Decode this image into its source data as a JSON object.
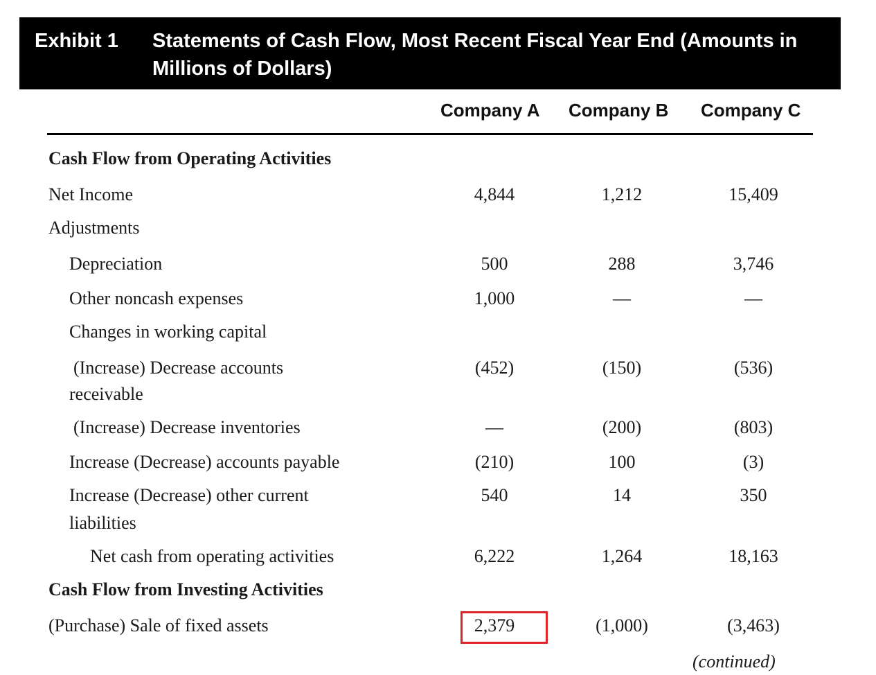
{
  "exhibit": {
    "label": "Exhibit 1",
    "title": "Statements of Cash Flow, Most Recent Fiscal Year End (Amounts in Millions of Dollars)"
  },
  "columns": [
    "Company A",
    "Company B",
    "Company C"
  ],
  "sections": {
    "operating": "Cash Flow from Operating Activities",
    "investing": "Cash Flow from Investing Activities"
  },
  "rows": {
    "net_income": {
      "label": "Net Income",
      "a": "4,844",
      "b": "1,212",
      "c": "15,409"
    },
    "adjustments": {
      "label": "Adjustments"
    },
    "depreciation": {
      "label": "Depreciation",
      "a": "500",
      "b": "288",
      "c": "3,746"
    },
    "other_noncash": {
      "label": "Other noncash expenses",
      "a": "1,000",
      "b": "—",
      "c": "—"
    },
    "working_capital": {
      "label": "Changes in working capital"
    },
    "receivable": {
      "label_line1": "(Increase) Decrease accounts",
      "label_line2": "receivable",
      "a": "(452)",
      "b": "(150)",
      "c": "(536)"
    },
    "inventories": {
      "label": "(Increase) Decrease inventories",
      "a": "—",
      "b": "(200)",
      "c": "(803)"
    },
    "payable": {
      "label": "Increase (Decrease) accounts payable",
      "a": "(210)",
      "b": "100",
      "c": "(3)"
    },
    "other_liabilities": {
      "label_line1": "Increase (Decrease) other current",
      "label_line2": "liabilities",
      "a": "540",
      "b": "14",
      "c": "350"
    },
    "net_operating": {
      "label": "Net cash from operating activities",
      "a": "6,222",
      "b": "1,264",
      "c": "18,163"
    },
    "fixed_assets": {
      "label": "(Purchase) Sale of fixed assets",
      "a": "2,379",
      "b": "(1,000)",
      "c": "(3,463)"
    }
  },
  "continued": "(continued)",
  "highlight_color": "#e0242a"
}
